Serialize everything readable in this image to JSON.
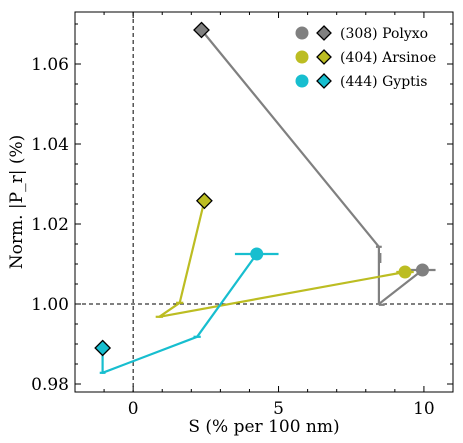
{
  "chart_data": {
    "type": "scatter",
    "title": "",
    "xlabel": "S (% per 100 nm)",
    "ylabel": "Norm. |P_r| (%)",
    "xlim": [
      -2.0,
      11.0
    ],
    "ylim": [
      0.978,
      1.073
    ],
    "x_ticks": [
      0,
      5,
      10
    ],
    "y_ticks": [
      0.98,
      1.0,
      1.02,
      1.04,
      1.06
    ],
    "x_tick_labels": [
      "0",
      "5",
      "10"
    ],
    "y_tick_labels": [
      "0.98",
      "1.00",
      "1.02",
      "1.04",
      "1.06"
    ],
    "reference_lines": {
      "x": 0,
      "y": 1.0
    },
    "grid": false,
    "legend": "top-right",
    "colors": {
      "Polyxo": "#808080",
      "Arsinoe": "#bcbd22",
      "Gyptis": "#17becf"
    },
    "series": [
      {
        "name": "(308) Polyxo",
        "key": "Polyxo",
        "circle": {
          "x": 9.95,
          "y": 1.0085,
          "xerr": 0.45
        },
        "diamond": {
          "x": 2.35,
          "y": 1.0685
        },
        "path": [
          [
            2.35,
            1.0685
          ],
          [
            8.45,
            1.0143
          ],
          [
            8.45,
            1.0
          ],
          [
            9.95,
            1.0085
          ]
        ],
        "caps": [
          {
            "orient": "h",
            "x": 8.45,
            "y": 1.0143,
            "len": 0.2
          },
          {
            "orient": "h",
            "x": 8.55,
            "y": 0.9998,
            "len": 0.2
          },
          {
            "orient": "v",
            "x": 8.5,
            "y": 1.0115,
            "len": 0.0025
          }
        ]
      },
      {
        "name": "(404) Arsinoe",
        "key": "Arsinoe",
        "circle": {
          "x": 9.35,
          "y": 1.008,
          "xerr": 0.3
        },
        "diamond": {
          "x": 2.45,
          "y": 1.0258
        },
        "path": [
          [
            2.45,
            1.0258
          ],
          [
            1.6,
            1.0003
          ],
          [
            0.9,
            0.9968
          ],
          [
            9.35,
            1.008
          ]
        ],
        "caps": [
          {
            "orient": "h",
            "x": 1.6,
            "y": 1.0003,
            "len": 0.25
          },
          {
            "orient": "h",
            "x": 0.9,
            "y": 0.9968,
            "len": 0.25
          }
        ]
      },
      {
        "name": "(444) Gyptis",
        "key": "Gyptis",
        "circle": {
          "x": 4.25,
          "y": 1.0125,
          "xerr": 0.75
        },
        "diamond": {
          "x": -1.05,
          "y": 0.989
        },
        "path": [
          [
            -1.05,
            0.989
          ],
          [
            -1.05,
            0.9828
          ],
          [
            2.2,
            0.9918
          ],
          [
            4.25,
            1.0125
          ]
        ],
        "caps": [
          {
            "orient": "h",
            "x": -1.05,
            "y": 0.9828,
            "len": 0.2
          },
          {
            "orient": "h",
            "x": 2.2,
            "y": 0.9918,
            "len": 0.25
          }
        ]
      }
    ]
  }
}
